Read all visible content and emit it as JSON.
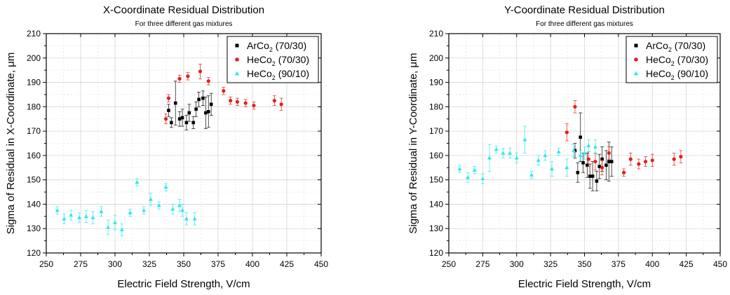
{
  "chart_data": [
    {
      "type": "scatter",
      "title": "X-Coordinate Residual Distribution",
      "subtitle": "For three different gas mixtures",
      "xlabel": "Electric Field Strength, V/cm",
      "ylabel": "Sigma of Residual in X-Coordinate, μm",
      "xlim": [
        250,
        450
      ],
      "ylim": [
        120,
        210
      ],
      "x_ticks": [
        "250",
        "275",
        "300",
        "325",
        "350",
        "375",
        "400",
        "425",
        "450"
      ],
      "y_ticks": [
        "120",
        "130",
        "140",
        "150",
        "160",
        "170",
        "180",
        "190",
        "200",
        "210"
      ],
      "grid": true,
      "legend_position": "top-right",
      "series": [
        {
          "name": "ArCo",
          "name_sub": "2",
          "name_suffix": " (70/30)",
          "color": "#000000",
          "marker": "square",
          "points": [
            {
              "x": 339,
              "y": 178.5,
              "e": 2.5
            },
            {
              "x": 341,
              "y": 173.5,
              "e": 2.0
            },
            {
              "x": 344,
              "y": 181.5,
              "e": 9.0
            },
            {
              "x": 347,
              "y": 175.0,
              "e": 3.0
            },
            {
              "x": 349,
              "y": 175.5,
              "e": 3.5
            },
            {
              "x": 352,
              "y": 173.5,
              "e": 3.0
            },
            {
              "x": 354,
              "y": 177.5,
              "e": 3.5
            },
            {
              "x": 357,
              "y": 173.5,
              "e": 2.5
            },
            {
              "x": 359,
              "y": 179.0,
              "e": 3.0
            },
            {
              "x": 361,
              "y": 183.0,
              "e": 3.0
            },
            {
              "x": 364,
              "y": 183.5,
              "e": 3.0
            },
            {
              "x": 366,
              "y": 177.5,
              "e": 6.5
            },
            {
              "x": 368,
              "y": 178.0,
              "e": 6.5
            },
            {
              "x": 370,
              "y": 181.0,
              "e": 4.5
            }
          ]
        },
        {
          "name": "HeCo",
          "name_sub": "2",
          "name_suffix": " (70/30)",
          "color": "#e0201b",
          "marker": "circle",
          "points": [
            {
              "x": 337,
              "y": 175.0,
              "e": 2.0
            },
            {
              "x": 339,
              "y": 183.5,
              "e": 1.5
            },
            {
              "x": 347,
              "y": 191.5,
              "e": 1.5
            },
            {
              "x": 353,
              "y": 192.5,
              "e": 1.5
            },
            {
              "x": 362,
              "y": 194.5,
              "e": 3.0
            },
            {
              "x": 368,
              "y": 190.5,
              "e": 1.5
            },
            {
              "x": 379,
              "y": 186.5,
              "e": 1.5
            },
            {
              "x": 384,
              "y": 182.5,
              "e": 1.5
            },
            {
              "x": 389,
              "y": 182.0,
              "e": 1.5
            },
            {
              "x": 395,
              "y": 181.5,
              "e": 1.5
            },
            {
              "x": 401,
              "y": 180.5,
              "e": 1.5
            },
            {
              "x": 416,
              "y": 182.5,
              "e": 2.0
            },
            {
              "x": 421,
              "y": 181.0,
              "e": 2.5
            }
          ]
        },
        {
          "name": "HeCo",
          "name_sub": "2",
          "name_suffix": " (90/10)",
          "color": "#2ee8ea",
          "marker": "triangle",
          "points": [
            {
              "x": 258,
              "y": 137.5,
              "e": 1.5
            },
            {
              "x": 263,
              "y": 134.0,
              "e": 2.0
            },
            {
              "x": 268,
              "y": 135.5,
              "e": 2.0
            },
            {
              "x": 274,
              "y": 134.5,
              "e": 2.0
            },
            {
              "x": 279,
              "y": 135.0,
              "e": 2.5
            },
            {
              "x": 284,
              "y": 134.5,
              "e": 2.5
            },
            {
              "x": 290,
              "y": 137.0,
              "e": 2.0
            },
            {
              "x": 295,
              "y": 130.5,
              "e": 3.0
            },
            {
              "x": 300,
              "y": 132.5,
              "e": 3.0
            },
            {
              "x": 305,
              "y": 129.5,
              "e": 2.5
            },
            {
              "x": 311,
              "y": 136.5,
              "e": 1.5
            },
            {
              "x": 316,
              "y": 149.0,
              "e": 1.5
            },
            {
              "x": 321,
              "y": 137.5,
              "e": 1.5
            },
            {
              "x": 326,
              "y": 142.0,
              "e": 2.5
            },
            {
              "x": 332,
              "y": 139.5,
              "e": 1.5
            },
            {
              "x": 337,
              "y": 147.0,
              "e": 1.5
            },
            {
              "x": 342,
              "y": 138.0,
              "e": 2.0
            },
            {
              "x": 347,
              "y": 139.5,
              "e": 2.5
            },
            {
              "x": 349,
              "y": 137.5,
              "e": 2.5
            },
            {
              "x": 352,
              "y": 134.0,
              "e": 2.5
            },
            {
              "x": 358,
              "y": 134.0,
              "e": 2.5
            }
          ]
        }
      ]
    },
    {
      "type": "scatter",
      "title": "Y-Coordinate Residual Distribution",
      "subtitle": "For three different gas mixtures",
      "xlabel": "Electric Field Strength, V/cm",
      "ylabel": "Sigma of Residual in Y-Coordinate, μm",
      "xlim": [
        250,
        450
      ],
      "ylim": [
        120,
        210
      ],
      "x_ticks": [
        "250",
        "275",
        "300",
        "325",
        "350",
        "375",
        "400",
        "425",
        "450"
      ],
      "y_ticks": [
        "120",
        "130",
        "140",
        "150",
        "160",
        "170",
        "180",
        "190",
        "200",
        "210"
      ],
      "grid": true,
      "legend_position": "top-right",
      "series": [
        {
          "name": "ArCo",
          "name_sub": "2",
          "name_suffix": " (70/30)",
          "color": "#000000",
          "marker": "square",
          "points": [
            {
              "x": 343,
              "y": 162.0,
              "e": 3.0
            },
            {
              "x": 345,
              "y": 153.0,
              "e": 4.0
            },
            {
              "x": 347,
              "y": 167.5,
              "e": 10.0
            },
            {
              "x": 349,
              "y": 157.0,
              "e": 4.0
            },
            {
              "x": 352,
              "y": 156.0,
              "e": 5.0
            },
            {
              "x": 354,
              "y": 151.5,
              "e": 5.0
            },
            {
              "x": 356,
              "y": 151.5,
              "e": 6.0
            },
            {
              "x": 359,
              "y": 149.5,
              "e": 4.0
            },
            {
              "x": 361,
              "y": 155.5,
              "e": 5.0
            },
            {
              "x": 363,
              "y": 158.5,
              "e": 5.0
            },
            {
              "x": 366,
              "y": 156.0,
              "e": 6.0
            },
            {
              "x": 368,
              "y": 157.5,
              "e": 8.0
            },
            {
              "x": 370,
              "y": 157.5,
              "e": 6.0
            }
          ]
        },
        {
          "name": "HeCo",
          "name_sub": "2",
          "name_suffix": " (70/30)",
          "color": "#e0201b",
          "marker": "circle",
          "points": [
            {
              "x": 337,
              "y": 169.5,
              "e": 3.5
            },
            {
              "x": 343,
              "y": 180.0,
              "e": 2.5
            },
            {
              "x": 353,
              "y": 158.5,
              "e": 3.0
            },
            {
              "x": 358,
              "y": 157.5,
              "e": 3.5
            },
            {
              "x": 363,
              "y": 155.0,
              "e": 3.0
            },
            {
              "x": 368,
              "y": 161.0,
              "e": 2.5
            },
            {
              "x": 379,
              "y": 153.0,
              "e": 1.5
            },
            {
              "x": 384,
              "y": 158.5,
              "e": 2.5
            },
            {
              "x": 390,
              "y": 156.5,
              "e": 2.0
            },
            {
              "x": 395,
              "y": 157.5,
              "e": 2.0
            },
            {
              "x": 400,
              "y": 158.0,
              "e": 2.5
            },
            {
              "x": 416,
              "y": 158.5,
              "e": 2.5
            },
            {
              "x": 421,
              "y": 159.5,
              "e": 2.5
            }
          ]
        },
        {
          "name": "HeCo",
          "name_sub": "2",
          "name_suffix": " (90/10)",
          "color": "#2ee8ea",
          "marker": "triangle",
          "points": [
            {
              "x": 258,
              "y": 154.5,
              "e": 1.5
            },
            {
              "x": 264,
              "y": 151.0,
              "e": 2.0
            },
            {
              "x": 269,
              "y": 154.0,
              "e": 1.5
            },
            {
              "x": 275,
              "y": 150.5,
              "e": 2.0
            },
            {
              "x": 280,
              "y": 159.0,
              "e": 5.5
            },
            {
              "x": 285,
              "y": 162.5,
              "e": 1.5
            },
            {
              "x": 290,
              "y": 161.0,
              "e": 2.0
            },
            {
              "x": 295,
              "y": 161.0,
              "e": 2.0
            },
            {
              "x": 300,
              "y": 159.0,
              "e": 2.0
            },
            {
              "x": 306,
              "y": 166.5,
              "e": 5.5
            },
            {
              "x": 311,
              "y": 152.0,
              "e": 1.5
            },
            {
              "x": 316,
              "y": 158.0,
              "e": 2.0
            },
            {
              "x": 321,
              "y": 160.0,
              "e": 2.0
            },
            {
              "x": 326,
              "y": 154.5,
              "e": 3.0
            },
            {
              "x": 331,
              "y": 161.5,
              "e": 1.5
            },
            {
              "x": 337,
              "y": 155.0,
              "e": 3.5
            },
            {
              "x": 342,
              "y": 162.0,
              "e": 2.5
            },
            {
              "x": 347,
              "y": 160.0,
              "e": 2.0
            },
            {
              "x": 350,
              "y": 161.0,
              "e": 2.5
            },
            {
              "x": 353,
              "y": 164.0,
              "e": 2.5
            },
            {
              "x": 358,
              "y": 163.5,
              "e": 3.0
            }
          ]
        }
      ]
    }
  ]
}
